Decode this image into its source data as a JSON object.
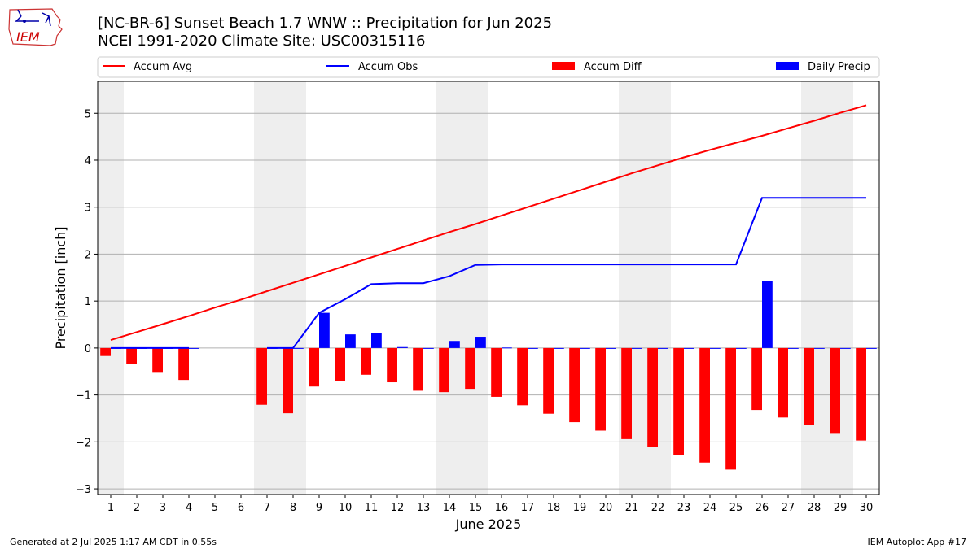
{
  "header": {
    "title_line1": "[NC-BR-6] Sunset Beach 1.7 WNW :: Precipitation for Jun 2025",
    "title_line2": "NCEI 1991-2020 Climate Site: USC00315116"
  },
  "logo": {
    "text": "IEM"
  },
  "footer": {
    "left": "Generated at 2 Jul 2025 1:17 AM CDT in 0.55s",
    "right": "IEM Autoplot App #17"
  },
  "colors": {
    "accum_avg": "#ff0000",
    "accum_obs": "#0000ff",
    "accum_diff": "#ff0000",
    "daily_precip": "#0000ff",
    "weekend_shade": "#eeeeee",
    "grid": "#b0b0b0"
  },
  "chart_data": {
    "type": "bar",
    "xlabel": "June 2025",
    "ylabel": "Precipitation [inch]",
    "xlim": [
      0.5,
      30.5
    ],
    "ylim": [
      -3.12,
      5.68
    ],
    "xticks": [
      1,
      2,
      3,
      4,
      5,
      6,
      7,
      8,
      9,
      10,
      11,
      12,
      13,
      14,
      15,
      16,
      17,
      18,
      19,
      20,
      21,
      22,
      23,
      24,
      25,
      26,
      27,
      28,
      29,
      30
    ],
    "yticks": [
      -3,
      -2,
      -1,
      0,
      1,
      2,
      3,
      4,
      5
    ],
    "grid": "horizontal",
    "legend": {
      "position": "top",
      "entries": [
        "Accum Avg",
        "Accum Obs",
        "Accum Diff",
        "Daily Precip"
      ]
    },
    "weekend_days": [
      1,
      7,
      8,
      14,
      15,
      21,
      22,
      28,
      29
    ],
    "days": [
      1,
      2,
      3,
      4,
      5,
      6,
      7,
      8,
      9,
      10,
      11,
      12,
      13,
      14,
      15,
      16,
      17,
      18,
      19,
      20,
      21,
      22,
      23,
      24,
      25,
      26,
      27,
      28,
      29,
      30
    ],
    "series": [
      {
        "name": "Accum Avg",
        "type": "line",
        "values": [
          0.17,
          0.34,
          0.51,
          0.68,
          0.86,
          1.03,
          1.21,
          1.39,
          1.57,
          1.75,
          1.93,
          2.11,
          2.29,
          2.47,
          2.64,
          2.82,
          3.0,
          3.18,
          3.36,
          3.54,
          3.72,
          3.89,
          4.06,
          4.22,
          4.37,
          4.52,
          4.68,
          4.84,
          5.01,
          5.17
        ]
      },
      {
        "name": "Accum Obs",
        "type": "line",
        "values": [
          0.0,
          0.0,
          0.0,
          0.0,
          null,
          null,
          0.0,
          0.0,
          0.75,
          1.04,
          1.36,
          1.38,
          1.38,
          1.53,
          1.77,
          1.78,
          1.78,
          1.78,
          1.78,
          1.78,
          1.78,
          1.78,
          1.78,
          1.78,
          1.78,
          3.2,
          3.2,
          3.2,
          3.2,
          3.2
        ]
      },
      {
        "name": "Accum Diff",
        "type": "bar",
        "values": [
          -0.17,
          -0.34,
          -0.51,
          -0.68,
          null,
          null,
          -1.21,
          -1.39,
          -0.82,
          -0.71,
          -0.57,
          -0.73,
          -0.91,
          -0.94,
          -0.87,
          -1.04,
          -1.22,
          -1.4,
          -1.58,
          -1.76,
          -1.94,
          -2.11,
          -2.28,
          -2.44,
          -2.59,
          -1.32,
          -1.48,
          -1.64,
          -1.81,
          -1.97
        ]
      },
      {
        "name": "Daily Precip",
        "type": "bar",
        "values": [
          0.0,
          0.0,
          0.0,
          0.0,
          null,
          null,
          0.0,
          0.0,
          0.75,
          0.29,
          0.32,
          0.02,
          0.0,
          0.15,
          0.24,
          0.01,
          0.0,
          0.0,
          0.0,
          0.0,
          0.0,
          0.0,
          0.0,
          0.0,
          0.0,
          1.42,
          0.0,
          0.0,
          0.0,
          0.0
        ]
      }
    ]
  }
}
